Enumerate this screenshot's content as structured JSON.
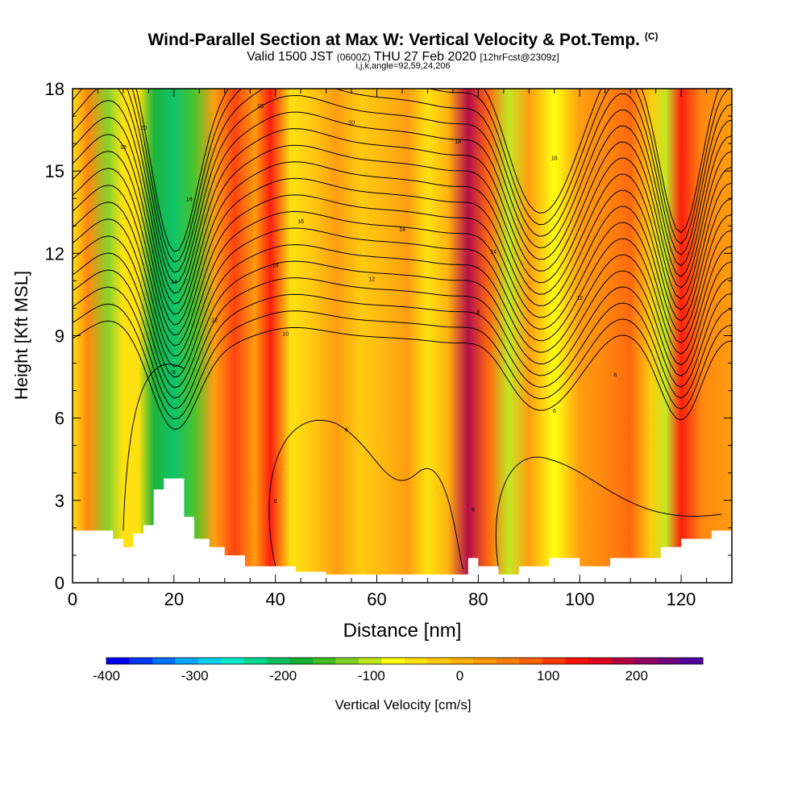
{
  "title": {
    "main": "Wind-Parallel Section at Max W: Vertical Velocity & Pot.Temp.",
    "copyright": "(C)",
    "valid_prefix": "Valid 1500 JST",
    "valid_utc": "(0600Z)",
    "valid_date": "THU 27 Feb 2020",
    "forecast": "[12hrFcst@2309z]",
    "indices": "i,j,k,angle=92,59,24,206"
  },
  "chart_data": {
    "type": "heatmap",
    "xlabel": "Distance [nm]",
    "ylabel": "Height [Kft MSL]",
    "xlim": [
      0,
      130
    ],
    "ylim": [
      0,
      18
    ],
    "x_ticks": [
      "0",
      "20",
      "40",
      "60",
      "80",
      "100",
      "120"
    ],
    "y_ticks": [
      "0",
      "3",
      "6",
      "9",
      "12",
      "15",
      "18"
    ],
    "colorbar": {
      "label": "Vertical Velocity [cm/s]",
      "min": -400,
      "max": 275,
      "tick_labels": [
        "-400",
        "-300",
        "-200",
        "-100",
        "0",
        "100",
        "200"
      ],
      "colors": [
        "#0000ff",
        "#0038ff",
        "#0070ff",
        "#00a8ff",
        "#00d0f0",
        "#00e8c8",
        "#00d890",
        "#00c060",
        "#10b030",
        "#40c020",
        "#80d020",
        "#c0e818",
        "#ffff00",
        "#ffe000",
        "#ffc800",
        "#ffb000",
        "#ff9800",
        "#ff8000",
        "#ff6000",
        "#ff3800",
        "#ff1000",
        "#e00020",
        "#b00040",
        "#900060",
        "#700080",
        "#5000a0"
      ]
    },
    "velocity_bands": [
      {
        "x": 0,
        "w": -40
      },
      {
        "x": 3,
        "w": 60
      },
      {
        "x": 7,
        "w": -130
      },
      {
        "x": 10,
        "w": -40
      },
      {
        "x": 13,
        "w": -60
      },
      {
        "x": 16,
        "w": -170
      },
      {
        "x": 20,
        "w": -210
      },
      {
        "x": 24,
        "w": -150
      },
      {
        "x": 28,
        "w": 20
      },
      {
        "x": 32,
        "w": 110
      },
      {
        "x": 36,
        "w": 40
      },
      {
        "x": 39,
        "w": 120
      },
      {
        "x": 43,
        "w": -60
      },
      {
        "x": 47,
        "w": -20
      },
      {
        "x": 52,
        "w": 20
      },
      {
        "x": 57,
        "w": -30
      },
      {
        "x": 62,
        "w": -10
      },
      {
        "x": 66,
        "w": 30
      },
      {
        "x": 70,
        "w": -60
      },
      {
        "x": 74,
        "w": 10
      },
      {
        "x": 78,
        "w": 190
      },
      {
        "x": 82,
        "w": 90
      },
      {
        "x": 86,
        "w": -100
      },
      {
        "x": 90,
        "w": 30
      },
      {
        "x": 95,
        "w": -80
      },
      {
        "x": 100,
        "w": 40
      },
      {
        "x": 105,
        "w": 60
      },
      {
        "x": 110,
        "w": 80
      },
      {
        "x": 114,
        "w": -20
      },
      {
        "x": 117,
        "w": -110
      },
      {
        "x": 120,
        "w": 140
      },
      {
        "x": 124,
        "w": 60
      },
      {
        "x": 130,
        "w": 30
      }
    ],
    "theta_contour_labels": [
      "20",
      "18",
      "16",
      "14",
      "12",
      "10",
      "8",
      "6"
    ],
    "terrain_kft": [
      {
        "x": 0,
        "h": 1.9
      },
      {
        "x": 6,
        "h": 1.9
      },
      {
        "x": 8,
        "h": 1.6
      },
      {
        "x": 10,
        "h": 1.3
      },
      {
        "x": 12,
        "h": 1.8
      },
      {
        "x": 14,
        "h": 2.1
      },
      {
        "x": 16,
        "h": 3.4
      },
      {
        "x": 18,
        "h": 3.8
      },
      {
        "x": 20,
        "h": 3.8
      },
      {
        "x": 22,
        "h": 2.4
      },
      {
        "x": 24,
        "h": 1.6
      },
      {
        "x": 27,
        "h": 1.3
      },
      {
        "x": 30,
        "h": 1.0
      },
      {
        "x": 34,
        "h": 0.6
      },
      {
        "x": 40,
        "h": 0.6
      },
      {
        "x": 44,
        "h": 0.4
      },
      {
        "x": 50,
        "h": 0.3
      },
      {
        "x": 60,
        "h": 0.3
      },
      {
        "x": 70,
        "h": 0.3
      },
      {
        "x": 76,
        "h": 0.3
      },
      {
        "x": 78,
        "h": 0.9
      },
      {
        "x": 80,
        "h": 0.6
      },
      {
        "x": 84,
        "h": 0.3
      },
      {
        "x": 88,
        "h": 0.6
      },
      {
        "x": 94,
        "h": 0.9
      },
      {
        "x": 100,
        "h": 0.6
      },
      {
        "x": 106,
        "h": 0.9
      },
      {
        "x": 112,
        "h": 0.9
      },
      {
        "x": 116,
        "h": 1.3
      },
      {
        "x": 120,
        "h": 1.6
      },
      {
        "x": 126,
        "h": 1.9
      },
      {
        "x": 130,
        "h": 1.9
      }
    ]
  }
}
